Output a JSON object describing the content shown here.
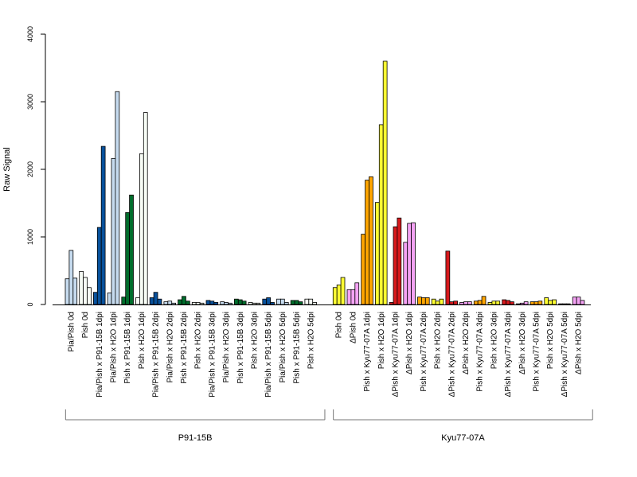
{
  "chart_data": {
    "type": "bar",
    "ylabel": "Raw Signal",
    "xlabel": "",
    "ylim": [
      0,
      4000
    ],
    "yticks": [
      0,
      1000,
      2000,
      3000,
      4000
    ],
    "grid": false,
    "bars_per_group": 3,
    "groups": [
      {
        "label": "P91-15B",
        "first_category": 0,
        "last_category": 18
      },
      {
        "label": "Kyu77-07A",
        "first_category": 19,
        "last_category": 37
      }
    ],
    "categories": [
      {
        "label": "Pia/Pish 0d",
        "color": "#c6dbef",
        "values": [
          380,
          800,
          390
        ]
      },
      {
        "label": "Pish 0d",
        "color": "#f7fcf5",
        "values": [
          490,
          400,
          250
        ]
      },
      {
        "label": "Pia/Pish x P91-15B 1dpi",
        "color": "#08519c",
        "values": [
          180,
          1140,
          2340
        ]
      },
      {
        "label": "Pia/Pish x H2O 1dpi",
        "color": "#c6dbef",
        "values": [
          170,
          2160,
          3150
        ]
      },
      {
        "label": "Pish x P91-15B 1dpi",
        "color": "#006d2c",
        "values": [
          110,
          1360,
          1620
        ]
      },
      {
        "label": "Pish x H2O 1dpi",
        "color": "#f7fcf5",
        "values": [
          100,
          2230,
          2840
        ]
      },
      {
        "label": "Pia/Pish x P91-15B 2dpi",
        "color": "#08519c",
        "values": [
          100,
          180,
          80
        ]
      },
      {
        "label": "Pia/Pish x H2O 2dpi",
        "color": "#c6dbef",
        "values": [
          40,
          50,
          20
        ]
      },
      {
        "label": "Pish x P91-15B 2dpi",
        "color": "#006d2c",
        "values": [
          70,
          120,
          50
        ]
      },
      {
        "label": "Pish x H2O 2dpi",
        "color": "#f7fcf5",
        "values": [
          30,
          30,
          20
        ]
      },
      {
        "label": "Pia/Pish x P91-15B 3dpi",
        "color": "#08519c",
        "values": [
          60,
          50,
          30
        ]
      },
      {
        "label": "Pia/Pish x H2O 3dpi",
        "color": "#c6dbef",
        "values": [
          40,
          30,
          20
        ]
      },
      {
        "label": "Pish x P91-15B 3dpi",
        "color": "#006d2c",
        "values": [
          80,
          70,
          50
        ]
      },
      {
        "label": "Pish x H2O 3dpi",
        "color": "#f7fcf5",
        "values": [
          30,
          20,
          20
        ]
      },
      {
        "label": "Pia/Pish x P91-15B 5dpi",
        "color": "#08519c",
        "values": [
          80,
          100,
          30
        ]
      },
      {
        "label": "Pia/Pish x H2O 5dpi",
        "color": "#c6dbef",
        "values": [
          80,
          80,
          30
        ]
      },
      {
        "label": "Pish x P91-15B 5dpi",
        "color": "#006d2c",
        "values": [
          60,
          60,
          40
        ]
      },
      {
        "label": "Pish x H2O 5dpi",
        "color": "#f7fcf5",
        "values": [
          80,
          80,
          30
        ]
      },
      {
        "label": "Pia/Pish 0d",
        "color": "#ffffff",
        "values": [
          0,
          0,
          0
        ],
        "hidden_label": true
      },
      {
        "label": "Pish 0d",
        "color": "#ffff33",
        "values": [
          250,
          290,
          400
        ]
      },
      {
        "label": "ΔPish 0d",
        "color": "#f5a3f5",
        "values": [
          220,
          220,
          320
        ]
      },
      {
        "label": "Pish x Kyu77-07A 1dpi",
        "color": "#ffa500",
        "values": [
          1040,
          1840,
          1890
        ]
      },
      {
        "label": "Pish x H2O 1dpi",
        "color": "#ffff33",
        "values": [
          1510,
          2660,
          3600
        ]
      },
      {
        "label": "ΔPish x Kyu77-07A 1dpi",
        "color": "#d7191c",
        "values": [
          30,
          1150,
          1280
        ]
      },
      {
        "label": "ΔPish x H2O 1dpi",
        "color": "#f5a3f5",
        "values": [
          920,
          1200,
          1210
        ]
      },
      {
        "label": "Pish x Kyu77-07A 2dpi",
        "color": "#ffa500",
        "values": [
          110,
          100,
          100
        ]
      },
      {
        "label": "Pish x H2O 2dpi",
        "color": "#ffff33",
        "values": [
          80,
          50,
          80
        ]
      },
      {
        "label": "ΔPish x Kyu77-07A 2dpi",
        "color": "#d7191c",
        "values": [
          790,
          40,
          50
        ]
      },
      {
        "label": "ΔPish x H2O 2dpi",
        "color": "#f5a3f5",
        "values": [
          30,
          40,
          40
        ]
      },
      {
        "label": "Pish x Kyu77-07A 3dpi",
        "color": "#ffa500",
        "values": [
          50,
          60,
          120
        ]
      },
      {
        "label": "Pish x H2O 3dpi",
        "color": "#ffff33",
        "values": [
          30,
          50,
          50
        ]
      },
      {
        "label": "ΔPish x Kyu77-07A 3dpi",
        "color": "#d7191c",
        "values": [
          70,
          60,
          40
        ]
      },
      {
        "label": "ΔPish x H2O 3dpi",
        "color": "#f5a3f5",
        "values": [
          10,
          20,
          40
        ]
      },
      {
        "label": "Pish x Kyu77-07A 5dpi",
        "color": "#ffa500",
        "values": [
          40,
          40,
          50
        ]
      },
      {
        "label": "Pish x H2O 5dpi",
        "color": "#ffff33",
        "values": [
          100,
          60,
          70
        ]
      },
      {
        "label": "ΔPish x Kyu77-07A 5dpi",
        "color": "#d7191c",
        "values": [
          10,
          10,
          10
        ]
      },
      {
        "label": "ΔPish x H2O 5dpi",
        "color": "#f5a3f5",
        "values": [
          110,
          110,
          60
        ]
      }
    ]
  }
}
